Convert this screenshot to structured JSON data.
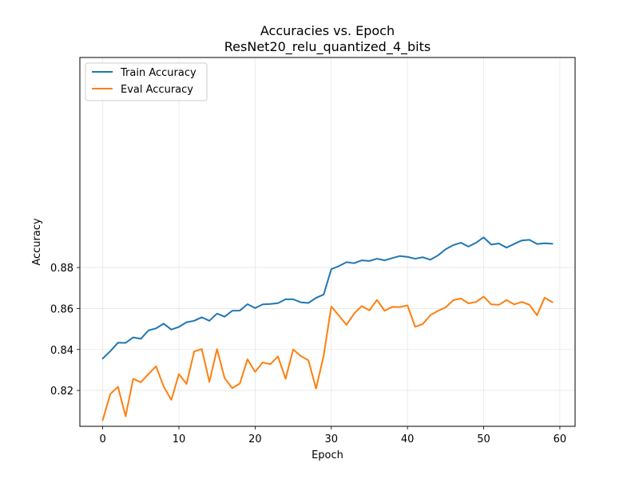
{
  "chart_data": {
    "type": "line",
    "title": "Accuracies vs. Epoch",
    "subtitle": "ResNet20_relu_quantized_4_bits",
    "xlabel": "Epoch",
    "ylabel": "Accuracy",
    "xlim": [
      -3,
      62
    ],
    "ylim": [
      0.8025,
      0.9825
    ],
    "xticks": [
      0,
      10,
      20,
      30,
      40,
      50,
      60
    ],
    "yticks": [
      0.82,
      0.84,
      0.86,
      0.88
    ],
    "ytick_labels": [
      "0.82",
      "0.84",
      "0.86",
      "0.88"
    ],
    "grid": true,
    "legend_position": "top-left",
    "x": [
      0,
      1,
      2,
      3,
      4,
      5,
      6,
      7,
      8,
      9,
      10,
      11,
      12,
      13,
      14,
      15,
      16,
      17,
      18,
      19,
      20,
      21,
      22,
      23,
      24,
      25,
      26,
      27,
      28,
      29,
      30,
      31,
      32,
      33,
      34,
      35,
      36,
      37,
      38,
      39,
      40,
      41,
      42,
      43,
      44,
      45,
      46,
      47,
      48,
      49,
      50,
      51,
      52,
      53,
      54,
      55,
      56,
      57,
      58,
      59
    ],
    "series": [
      {
        "name": "Train Accuracy",
        "color": "#1f77b4",
        "values": [
          0.8356,
          0.8392,
          0.8433,
          0.8432,
          0.8459,
          0.8452,
          0.8493,
          0.8503,
          0.8526,
          0.8497,
          0.851,
          0.8533,
          0.854,
          0.8557,
          0.854,
          0.8575,
          0.856,
          0.8589,
          0.859,
          0.8621,
          0.8602,
          0.862,
          0.8622,
          0.8626,
          0.8645,
          0.8645,
          0.863,
          0.8627,
          0.8652,
          0.8668,
          0.8792,
          0.8807,
          0.8826,
          0.8821,
          0.8835,
          0.8832,
          0.8843,
          0.8835,
          0.8846,
          0.8856,
          0.8852,
          0.8843,
          0.885,
          0.8838,
          0.8859,
          0.8889,
          0.8909,
          0.8921,
          0.8902,
          0.8921,
          0.8947,
          0.8912,
          0.8917,
          0.8897,
          0.8915,
          0.8932,
          0.8935,
          0.8915,
          0.8918,
          0.8916
        ]
      },
      {
        "name": "Eval Accuracy",
        "color": "#ff7f0e",
        "values": [
          0.8056,
          0.8183,
          0.8218,
          0.8074,
          0.8257,
          0.824,
          0.828,
          0.8318,
          0.8219,
          0.8154,
          0.828,
          0.8232,
          0.839,
          0.8402,
          0.8242,
          0.8402,
          0.826,
          0.8211,
          0.8234,
          0.8352,
          0.8291,
          0.8337,
          0.8328,
          0.8366,
          0.8257,
          0.84,
          0.8368,
          0.8347,
          0.8209,
          0.837,
          0.861,
          0.8565,
          0.852,
          0.8575,
          0.8612,
          0.8591,
          0.8642,
          0.8589,
          0.8608,
          0.8607,
          0.8615,
          0.8511,
          0.8524,
          0.8567,
          0.8589,
          0.8605,
          0.864,
          0.8649,
          0.8625,
          0.8632,
          0.8658,
          0.862,
          0.8618,
          0.8641,
          0.862,
          0.8632,
          0.8618,
          0.8567,
          0.8653,
          0.8631
        ]
      }
    ]
  }
}
